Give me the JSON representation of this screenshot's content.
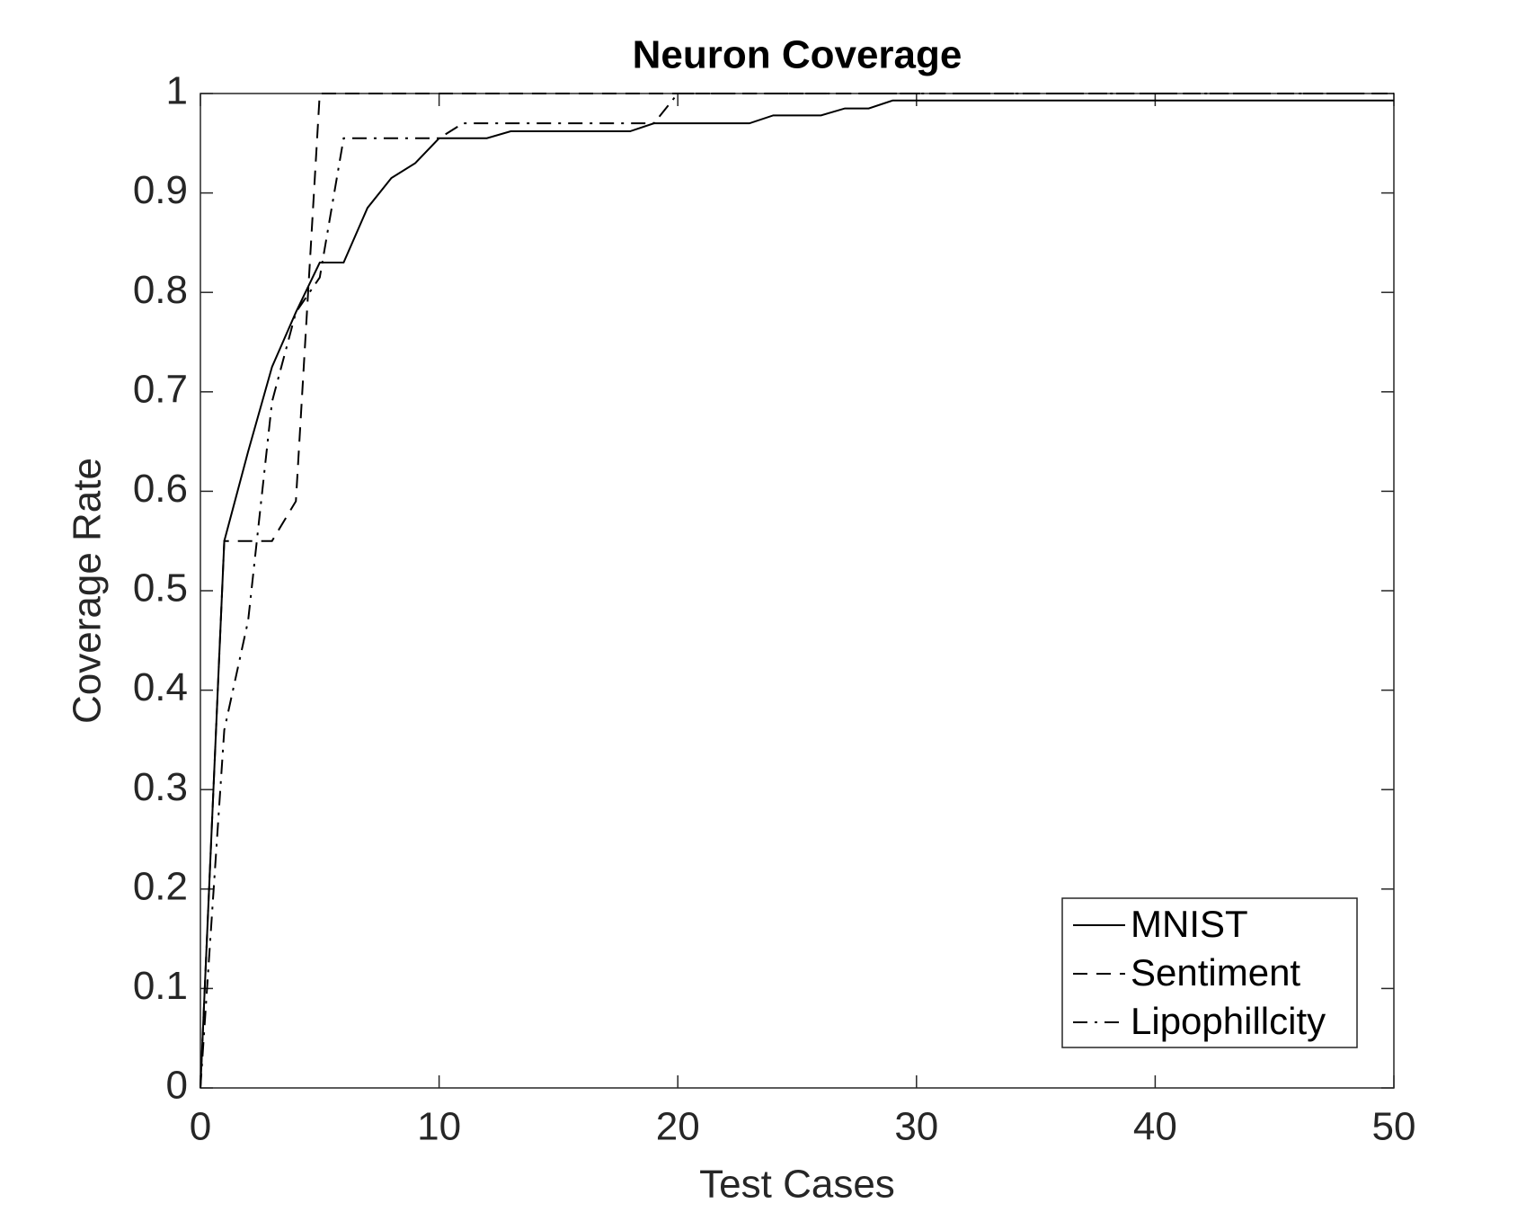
{
  "chart_data": {
    "type": "line",
    "title": "Neuron Coverage",
    "x_label": "Test Cases",
    "y_label": "Coverage Rate",
    "xlim": [
      0,
      50
    ],
    "ylim": [
      0,
      1
    ],
    "xticks": [
      0,
      10,
      20,
      30,
      40,
      50
    ],
    "yticks": [
      0,
      0.1,
      0.2,
      0.3,
      0.4,
      0.5,
      0.6,
      0.7,
      0.8,
      0.9,
      1
    ],
    "grid": false,
    "legend_position": "lower right",
    "series": [
      {
        "name": "MNIST",
        "color": "#000000",
        "linestyle": "-",
        "x": [
          0,
          1,
          2,
          3,
          4,
          5,
          6,
          7,
          8,
          9,
          10,
          12,
          13,
          18,
          19,
          23,
          24,
          26,
          27,
          28,
          29,
          50
        ],
        "values": [
          0,
          0.55,
          0.64,
          0.725,
          0.78,
          0.83,
          0.83,
          0.885,
          0.915,
          0.93,
          0.955,
          0.955,
          0.962,
          0.962,
          0.97,
          0.97,
          0.978,
          0.978,
          0.985,
          0.985,
          0.993,
          0.993
        ]
      },
      {
        "name": "Sentiment",
        "color": "#000000",
        "linestyle": "--",
        "x": [
          0,
          1,
          3,
          4,
          5,
          50
        ],
        "values": [
          0,
          0.55,
          0.55,
          0.59,
          1,
          1
        ]
      },
      {
        "name": "Lipophillcity",
        "color": "#000000",
        "linestyle": "-.",
        "x": [
          0,
          1,
          2,
          3,
          4,
          5,
          6,
          10,
          11,
          19,
          20,
          50
        ],
        "values": [
          0,
          0.36,
          0.47,
          0.69,
          0.78,
          0.815,
          0.955,
          0.955,
          0.97,
          0.97,
          1,
          1
        ]
      }
    ]
  }
}
